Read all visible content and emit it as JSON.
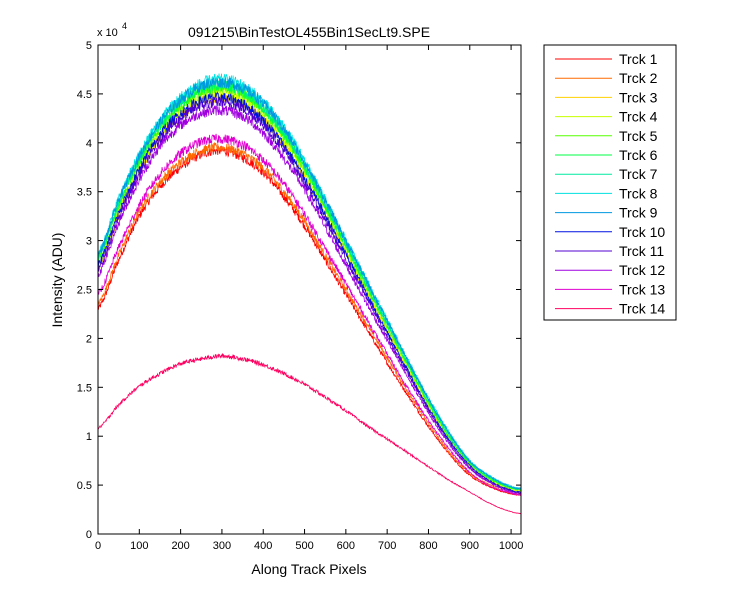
{
  "chart_data": {
    "type": "line",
    "title": "091215\\BinTestOL455Bin1SecLt9.SPE",
    "xlabel": "Along Track Pixels",
    "ylabel": "Intensity (ADU)",
    "y_multiplier_text": "x 10",
    "y_multiplier_exponent": "4",
    "xlim": [
      0,
      1024
    ],
    "ylim": [
      0,
      50000
    ],
    "x_ticks": [
      0,
      100,
      200,
      300,
      400,
      500,
      600,
      700,
      800,
      900,
      1000
    ],
    "x_tick_labels": [
      "0",
      "100",
      "200",
      "300",
      "400",
      "500",
      "600",
      "700",
      "800",
      "900",
      "1000"
    ],
    "y_ticks": [
      0,
      5000,
      10000,
      15000,
      20000,
      25000,
      30000,
      35000,
      40000,
      45000,
      50000
    ],
    "y_tick_labels": [
      "0",
      "0.5",
      "1",
      "1.5",
      "2",
      "2.5",
      "3",
      "3.5",
      "4",
      "4.5",
      "5"
    ],
    "grid": false,
    "legend_position": "outside-right",
    "x": [
      0,
      50,
      100,
      150,
      200,
      250,
      300,
      350,
      400,
      450,
      500,
      550,
      600,
      650,
      700,
      750,
      800,
      850,
      900,
      950,
      1000,
      1024
    ],
    "series": [
      {
        "name": "Trck 1",
        "color": "#ff0000",
        "values": [
          23000,
          28000,
          32500,
          35500,
          37500,
          38800,
          39200,
          38500,
          37000,
          34500,
          31500,
          28000,
          24500,
          21000,
          17500,
          14200,
          11000,
          8200,
          6000,
          4800,
          4100,
          4000
        ]
      },
      {
        "name": "Trck 2",
        "color": "#ff6a00",
        "values": [
          23500,
          28500,
          33000,
          36000,
          38000,
          39200,
          39500,
          38900,
          37400,
          35000,
          32000,
          28500,
          25000,
          21500,
          18000,
          14600,
          11300,
          8400,
          6200,
          5000,
          4200,
          4100
        ]
      },
      {
        "name": "Trck 3",
        "color": "#ffd000",
        "values": [
          27000,
          32500,
          37000,
          40500,
          42800,
          44200,
          44600,
          44000,
          42400,
          39800,
          36500,
          32700,
          28700,
          24700,
          20700,
          16800,
          13000,
          9700,
          7000,
          5400,
          4500,
          4300
        ]
      },
      {
        "name": "Trck 4",
        "color": "#c8ff00",
        "values": [
          27500,
          33000,
          37500,
          41000,
          43300,
          44700,
          45100,
          44500,
          42900,
          40300,
          37000,
          33100,
          29000,
          25000,
          21000,
          17000,
          13200,
          9800,
          7100,
          5500,
          4600,
          4400
        ]
      },
      {
        "name": "Trck 5",
        "color": "#55ff00",
        "values": [
          28000,
          33500,
          38000,
          41500,
          43800,
          45200,
          45600,
          45000,
          43300,
          40700,
          37300,
          33400,
          29300,
          25200,
          21200,
          17200,
          13300,
          9900,
          7200,
          5600,
          4700,
          4500
        ]
      },
      {
        "name": "Trck 6",
        "color": "#00ff44",
        "values": [
          28200,
          33700,
          38200,
          41700,
          44000,
          45400,
          45800,
          45200,
          43500,
          40900,
          37500,
          33600,
          29500,
          25400,
          21400,
          17400,
          13500,
          10000,
          7300,
          5700,
          4750,
          4550
        ]
      },
      {
        "name": "Trck 7",
        "color": "#00e8a0",
        "values": [
          28400,
          34000,
          38500,
          42000,
          44300,
          45700,
          46100,
          45500,
          43800,
          41200,
          37800,
          33900,
          29800,
          25700,
          21600,
          17600,
          13700,
          10200,
          7400,
          5800,
          4800,
          4600
        ]
      },
      {
        "name": "Trck 8",
        "color": "#00e0e0",
        "values": [
          28700,
          34300,
          38800,
          42300,
          44700,
          46100,
          46500,
          45900,
          44200,
          41600,
          38200,
          34200,
          30100,
          26000,
          21900,
          17800,
          13900,
          10400,
          7500,
          5900,
          4900,
          4700
        ]
      },
      {
        "name": "Trck 9",
        "color": "#0098e0",
        "values": [
          28500,
          34100,
          38600,
          42100,
          44400,
          45800,
          46200,
          45600,
          44000,
          41400,
          38000,
          34100,
          30000,
          25900,
          21800,
          17700,
          13800,
          10300,
          7450,
          5850,
          4850,
          4650
        ]
      },
      {
        "name": "Trck 10",
        "color": "#0010e0",
        "values": [
          27500,
          32800,
          37300,
          40800,
          43000,
          44300,
          44600,
          44000,
          42300,
          39700,
          36400,
          32600,
          28600,
          24600,
          20600,
          16700,
          12900,
          9600,
          7000,
          5400,
          4500,
          4300
        ]
      },
      {
        "name": "Trck 11",
        "color": "#5000d0",
        "values": [
          27000,
          32300,
          36800,
          40300,
          42500,
          43800,
          44100,
          43500,
          41800,
          39200,
          35900,
          32100,
          28100,
          24200,
          20200,
          16400,
          12700,
          9400,
          6800,
          5300,
          4400,
          4200
        ]
      },
      {
        "name": "Trck 12",
        "color": "#a000e0",
        "values": [
          26500,
          31800,
          36200,
          39600,
          41800,
          43000,
          43300,
          42700,
          41000,
          38400,
          35200,
          31400,
          27500,
          23600,
          19800,
          16000,
          12400,
          9200,
          6700,
          5200,
          4300,
          4100
        ]
      },
      {
        "name": "Trck 13",
        "color": "#e000d0",
        "values": [
          24500,
          29300,
          33600,
          36800,
          38900,
          40100,
          40400,
          39800,
          38200,
          35800,
          32700,
          29200,
          25600,
          22000,
          18400,
          14900,
          11600,
          8700,
          6300,
          4900,
          4200,
          4000
        ]
      },
      {
        "name": "Trck 14",
        "color": "#ff0060",
        "values": [
          10800,
          13200,
          15100,
          16400,
          17400,
          17900,
          18200,
          17900,
          17300,
          16400,
          15300,
          14000,
          12600,
          11100,
          9700,
          8300,
          6900,
          5500,
          4300,
          3100,
          2300,
          2100
        ]
      }
    ]
  }
}
